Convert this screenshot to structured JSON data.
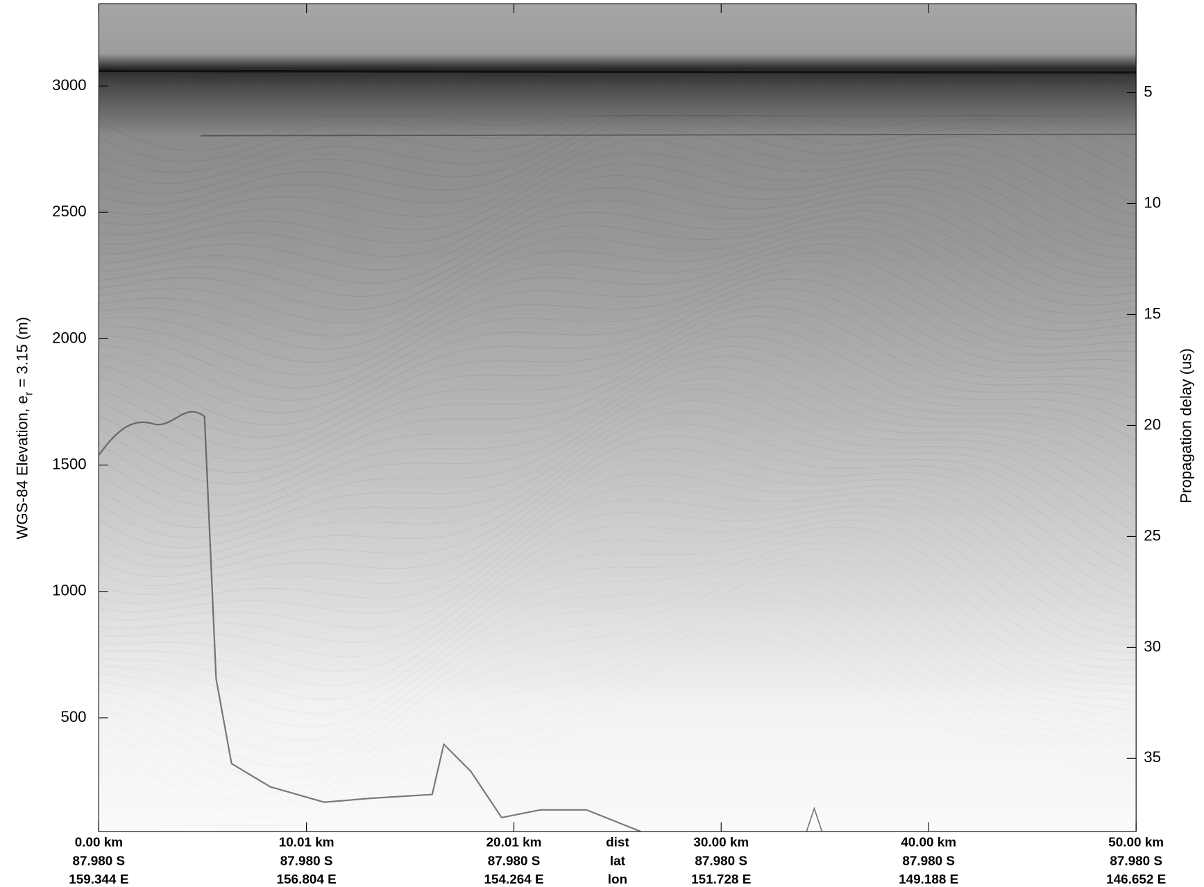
{
  "chart_data": {
    "type": "radargram",
    "ylabel": {
      "text": "WGS-84 Elevation, e",
      "subscript": "r",
      "rest": " = 3.15 (m)"
    },
    "y2label": "Propagation delay (us)",
    "ylim": [
      50,
      3325
    ],
    "yticks": [
      500,
      1000,
      1500,
      2000,
      2500,
      3000
    ],
    "y2lim": [
      1.0,
      38.3
    ],
    "y2ticks": [
      5,
      10,
      15,
      20,
      25,
      30,
      35
    ],
    "xlim": [
      0,
      50
    ],
    "xticks": [
      {
        "value": 0,
        "label": "0.00 km"
      },
      {
        "value": 10.01,
        "label": "10.01 km"
      },
      {
        "value": 20.01,
        "label": "20.01 km"
      },
      {
        "value": 30.0,
        "label": "30.00 km"
      },
      {
        "value": 40.0,
        "label": "40.00 km"
      },
      {
        "value": 50.0,
        "label": "50.00 km"
      }
    ],
    "lat_labels": [
      "87.980 S",
      "87.980 S",
      "87.980 S",
      "87.980 S",
      "87.980 S",
      "87.980 S"
    ],
    "lon_labels": [
      "159.344 E",
      "156.804 E",
      "154.264 E",
      "151.728 E",
      "149.188 E",
      "146.652 E"
    ],
    "row_labels": [
      "dist",
      "lat",
      "lon"
    ]
  }
}
